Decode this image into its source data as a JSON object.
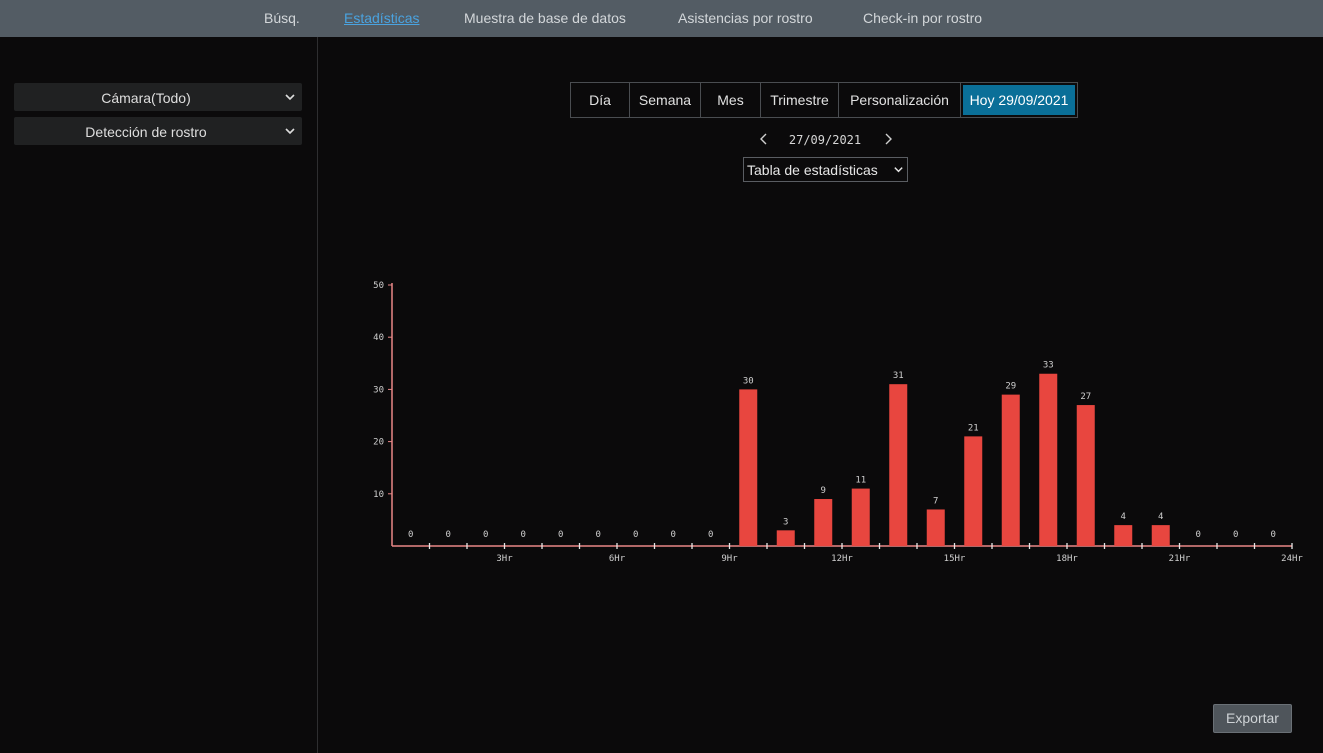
{
  "nav": {
    "tabs": [
      {
        "label": "Búsq."
      },
      {
        "label": "Estadísticas",
        "active": true
      },
      {
        "label": "Muestra de base de datos"
      },
      {
        "label": "Asistencias por rostro"
      },
      {
        "label": "Check-in por rostro"
      }
    ]
  },
  "sidebar": {
    "camera_select": "Cámara(Todo)",
    "detection_select": "Detección de rostro"
  },
  "periods": {
    "items": [
      {
        "label": "Día"
      },
      {
        "label": "Semana"
      },
      {
        "label": "Mes"
      },
      {
        "label": "Trimestre"
      },
      {
        "label": "Personalización"
      },
      {
        "label": "Hoy 29/09/2021",
        "selected": true
      }
    ]
  },
  "date_nav": {
    "date": "27/09/2021"
  },
  "chart_type_select": "Tabla de estadísticas",
  "export_label": "Exportar",
  "colors": {
    "bar": "#e8463f",
    "axis": "#e98888",
    "accent": "#4aa3e0",
    "selected": "#0a6f98"
  },
  "icons": {
    "prev": "chevron-left-icon",
    "next": "chevron-right-icon",
    "dropdown": "chevron-down-icon"
  },
  "chart_data": {
    "type": "bar",
    "categories": [
      "0",
      "1",
      "2",
      "3",
      "4",
      "5",
      "6",
      "7",
      "8",
      "9",
      "10",
      "11",
      "12",
      "13",
      "14",
      "15",
      "16",
      "17",
      "18",
      "19",
      "20",
      "21",
      "22",
      "23"
    ],
    "values": [
      0,
      0,
      0,
      0,
      0,
      0,
      0,
      0,
      0,
      30,
      3,
      9,
      11,
      31,
      7,
      21,
      29,
      33,
      27,
      4,
      4,
      0,
      0,
      0
    ],
    "x_tick_labels": [
      "3Hr",
      "6Hr",
      "9Hr",
      "12Hr",
      "15Hr",
      "18Hr",
      "21Hr",
      "24Hr"
    ],
    "y_ticks": [
      10,
      20,
      30,
      40,
      50
    ],
    "ylim": [
      0,
      50
    ],
    "xlim": [
      0,
      24
    ],
    "grid": false,
    "title": "",
    "xlabel": "",
    "ylabel": ""
  }
}
